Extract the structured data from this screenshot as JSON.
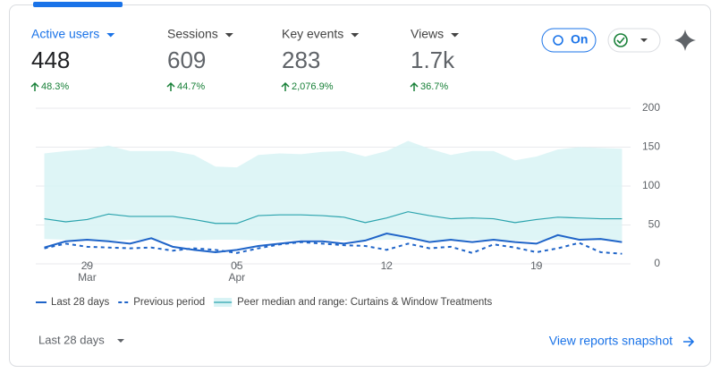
{
  "metrics": [
    {
      "label": "Active users",
      "value": "448",
      "change": "48.3%"
    },
    {
      "label": "Sessions",
      "value": "609",
      "change": "44.7%"
    },
    {
      "label": "Key events",
      "value": "283",
      "change": "2,076.9%"
    },
    {
      "label": "Views",
      "value": "1.7k",
      "change": "36.7%"
    }
  ],
  "toggle": {
    "label": "On"
  },
  "chart_data": {
    "type": "line",
    "x": [
      0,
      1,
      2,
      3,
      4,
      5,
      6,
      7,
      8,
      9,
      10,
      11,
      12,
      13,
      14,
      15,
      16,
      17,
      18,
      19,
      20,
      21,
      22,
      23,
      24,
      25,
      26,
      27
    ],
    "xlim": [
      -0.4,
      27.4
    ],
    "xticks": [
      {
        "value": 2,
        "label": "29"
      },
      {
        "value": 9,
        "label": "05"
      },
      {
        "value": 16,
        "label": "12"
      },
      {
        "value": 23,
        "label": "19"
      }
    ],
    "x_sublabels": [
      {
        "value": 2,
        "label": "Mar"
      },
      {
        "value": 9,
        "label": "Apr"
      }
    ],
    "ylim": [
      0,
      200
    ],
    "yticks": [
      0,
      50,
      100,
      150,
      200
    ],
    "grid": true,
    "series": [
      {
        "name": "Last 28 days",
        "color": "#1f64c8",
        "style": "solid",
        "values": [
          21,
          29,
          31,
          29,
          26,
          33,
          22,
          18,
          15,
          18,
          23,
          26,
          29,
          29,
          26,
          30,
          39,
          34,
          28,
          31,
          28,
          31,
          28,
          26,
          37,
          31,
          32,
          28
        ]
      },
      {
        "name": "Previous period",
        "color": "#1f64c8",
        "style": "dashed",
        "values": [
          20,
          26,
          22,
          21,
          20,
          21,
          17,
          20,
          18,
          14,
          20,
          25,
          28,
          26,
          24,
          23,
          18,
          26,
          20,
          22,
          14,
          25,
          21,
          15,
          20,
          27,
          15,
          13
        ]
      },
      {
        "name": "Peer median and range: Curtains & Window Treatments",
        "color": "#2aa3ad",
        "style": "band",
        "values": [
          58,
          54,
          57,
          64,
          61,
          61,
          61,
          57,
          52,
          52,
          62,
          63,
          63,
          62,
          60,
          53,
          59,
          67,
          62,
          58,
          59,
          58,
          53,
          57,
          60,
          59,
          58,
          58
        ],
        "range_low": [
          32,
          31,
          30,
          30,
          31,
          31,
          30,
          30,
          31,
          31,
          30,
          30,
          31,
          31,
          30,
          30,
          31,
          31,
          30,
          30,
          31,
          31,
          30,
          30,
          31,
          31,
          30,
          30
        ],
        "range_high": [
          142,
          145,
          147,
          152,
          145,
          145,
          145,
          140,
          125,
          124,
          140,
          142,
          141,
          144,
          145,
          138,
          145,
          158,
          148,
          140,
          145,
          145,
          133,
          138,
          147,
          150,
          149,
          148
        ]
      }
    ]
  },
  "footer": {
    "period": "Last 28 days",
    "link": "View reports snapshot"
  }
}
